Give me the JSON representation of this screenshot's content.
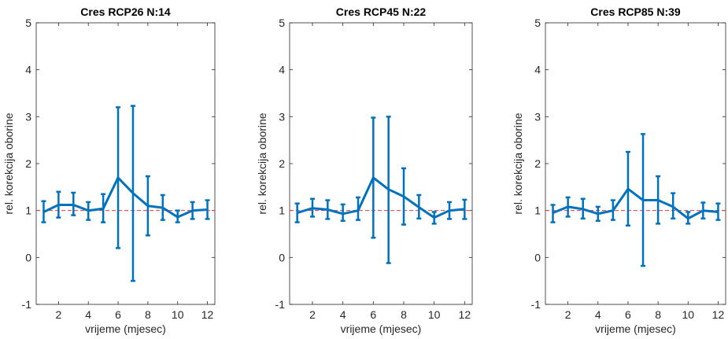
{
  "figure": {
    "background": "#ffffff"
  },
  "colors": {
    "series": "#0072BD",
    "reference": "#E8383D",
    "axes": "#262626"
  },
  "chart_data": [
    {
      "type": "line",
      "title": "Cres RCP26 N:14",
      "xlabel": "vrijeme (mjesec)",
      "ylabel": "rel. korekcija oborine",
      "xlim": [
        0.5,
        12.5
      ],
      "ylim": [
        -1,
        5
      ],
      "xticks": [
        "2",
        "4",
        "6",
        "8",
        "10",
        "12"
      ],
      "yticks": [
        "-1",
        "0",
        "1",
        "2",
        "3",
        "4",
        "5"
      ],
      "grid": false,
      "reference_line": 1,
      "x": [
        1,
        2,
        3,
        4,
        5,
        6,
        7,
        8,
        9,
        10,
        11,
        12
      ],
      "y": [
        0.97,
        1.12,
        1.12,
        1.0,
        1.04,
        1.7,
        1.37,
        1.1,
        1.06,
        0.86,
        1.0,
        1.02
      ],
      "err_low": [
        0.75,
        0.85,
        0.9,
        0.8,
        0.75,
        0.2,
        -0.5,
        0.47,
        0.8,
        0.75,
        0.82,
        0.82
      ],
      "err_high": [
        1.2,
        1.4,
        1.38,
        1.18,
        1.35,
        3.2,
        3.23,
        1.73,
        1.33,
        1.0,
        1.18,
        1.22
      ]
    },
    {
      "type": "line",
      "title": "Cres RCP45 N:22",
      "xlabel": "vrijeme (mjesec)",
      "ylabel": "rel. korekcija oborine",
      "xlim": [
        0.5,
        12.5
      ],
      "ylim": [
        -1,
        5
      ],
      "xticks": [
        "2",
        "4",
        "6",
        "8",
        "10",
        "12"
      ],
      "yticks": [
        "-1",
        "0",
        "1",
        "2",
        "3",
        "4",
        "5"
      ],
      "grid": false,
      "reference_line": 1,
      "x": [
        1,
        2,
        3,
        4,
        5,
        6,
        7,
        8,
        9,
        10,
        11,
        12
      ],
      "y": [
        0.95,
        1.05,
        1.02,
        0.93,
        1.0,
        1.7,
        1.45,
        1.3,
        1.07,
        0.85,
        1.0,
        1.03
      ],
      "err_low": [
        0.75,
        0.87,
        0.82,
        0.78,
        0.8,
        0.42,
        -0.12,
        0.7,
        0.83,
        0.72,
        0.82,
        0.82
      ],
      "err_high": [
        1.15,
        1.25,
        1.22,
        1.13,
        1.28,
        2.98,
        3.0,
        1.9,
        1.33,
        0.97,
        1.18,
        1.23
      ]
    },
    {
      "type": "line",
      "title": "Cres RCP85 N:39",
      "xlabel": "vrijeme (mjesec)",
      "ylabel": "rel. korekcija oborine",
      "xlim": [
        0.5,
        12.5
      ],
      "ylim": [
        -1,
        5
      ],
      "xticks": [
        "2",
        "4",
        "6",
        "8",
        "10",
        "12"
      ],
      "yticks": [
        "-1",
        "0",
        "1",
        "2",
        "3",
        "4",
        "5"
      ],
      "grid": false,
      "reference_line": 1,
      "x": [
        1,
        2,
        3,
        4,
        5,
        6,
        7,
        8,
        9,
        10,
        11,
        12
      ],
      "y": [
        0.95,
        1.08,
        1.03,
        0.93,
        1.0,
        1.46,
        1.22,
        1.22,
        1.08,
        0.83,
        1.0,
        0.97
      ],
      "err_low": [
        0.75,
        0.87,
        0.83,
        0.78,
        0.8,
        0.68,
        -0.18,
        0.72,
        0.83,
        0.72,
        0.83,
        0.8
      ],
      "err_high": [
        1.12,
        1.28,
        1.25,
        1.08,
        1.22,
        2.25,
        2.63,
        1.73,
        1.37,
        0.97,
        1.17,
        1.15
      ]
    }
  ]
}
